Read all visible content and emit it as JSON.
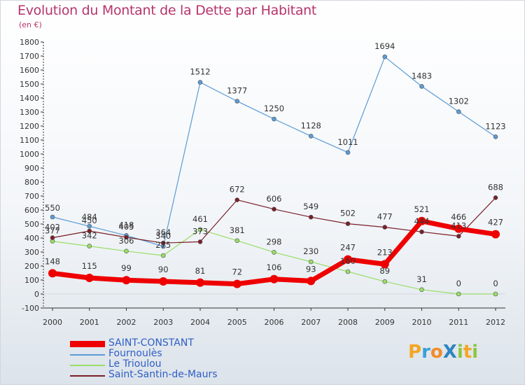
{
  "title": "Evolution du Montant de la Dette par Habitant",
  "subtitle": "(en €)",
  "colors": {
    "title": "#b7346a",
    "legend_text": "#2f5fc4"
  },
  "logo": {
    "text": "ProXiti",
    "letters": [
      {
        "ch": "P",
        "color": "#f5a623"
      },
      {
        "ch": "r",
        "color": "#3aa0d8"
      },
      {
        "ch": "o",
        "color": "#f28c28"
      },
      {
        "ch": "X",
        "color": "#2e86c1"
      },
      {
        "ch": "i",
        "color": "#8cc63f"
      },
      {
        "ch": "t",
        "color": "#f5a623"
      },
      {
        "ch": "i",
        "color": "#8cc63f"
      }
    ]
  },
  "chart_data": {
    "type": "line",
    "title": "Evolution du Montant de la Dette par Habitant",
    "subtitle": "(en €)",
    "xlabel": "",
    "ylabel": "",
    "x": [
      "2000",
      "2001",
      "2002",
      "2003",
      "2004",
      "2005",
      "2006",
      "2007",
      "2008",
      "2009",
      "2010",
      "2011",
      "2012"
    ],
    "ylim": [
      -100,
      1800
    ],
    "yticks": [
      -100,
      0,
      100,
      200,
      300,
      400,
      500,
      600,
      700,
      800,
      900,
      1000,
      1100,
      1200,
      1300,
      1400,
      1500,
      1600,
      1700,
      1800
    ],
    "grid": false,
    "legend_position": "bottom-left",
    "series": [
      {
        "name": "SAINT-CONSTANT",
        "color": "#ee0000",
        "values": [
          148,
          115,
          99,
          90,
          81,
          72,
          106,
          93,
          247,
          213,
          521,
          466,
          427
        ]
      },
      {
        "name": "Fournoulès",
        "color": "#5b9bd5",
        "values": [
          550,
          484,
          418,
          340,
          null,
          null,
          null,
          null,
          null,
          null,
          null,
          null,
          null
        ],
        "values_full": [
          550,
          484,
          418,
          340,
          1512,
          1377,
          1250,
          1128,
          1011,
          1694,
          1483,
          1302,
          1123
        ]
      },
      {
        "name": "Le Trioulou",
        "color": "#99dd66",
        "values": [
          377,
          342,
          306,
          275,
          461,
          381,
          298,
          230,
          160,
          89,
          31,
          0,
          0
        ]
      },
      {
        "name": "Saint-Santin-de-Maurs",
        "color": "#7a1f28",
        "values": [
          402,
          450,
          405,
          364,
          373,
          672,
          606,
          549,
          502,
          477,
          444,
          413,
          688
        ]
      }
    ],
    "labels_shown": {
      "SAINT-CONSTANT": [
        "148",
        "115",
        "99",
        "90",
        "81",
        "72",
        "106",
        "93",
        "247",
        "213",
        "521",
        "466",
        "427"
      ],
      "Fournoulès": [
        "550",
        "484",
        "418",
        "340",
        "1512",
        "1377",
        "1250",
        "1128",
        "1011",
        "1694",
        "1483",
        "1302",
        "1123"
      ],
      "Le Trioulou": [
        "377",
        "342",
        "306",
        "275",
        "461",
        "381",
        "298",
        "230",
        "160",
        "89",
        "31",
        "0",
        "0"
      ],
      "Saint-Santin-de-Maurs": [
        "402",
        "450",
        "405",
        "364",
        "373",
        "672",
        "606",
        "549",
        "502",
        "477",
        "444",
        "413",
        "688"
      ]
    }
  }
}
